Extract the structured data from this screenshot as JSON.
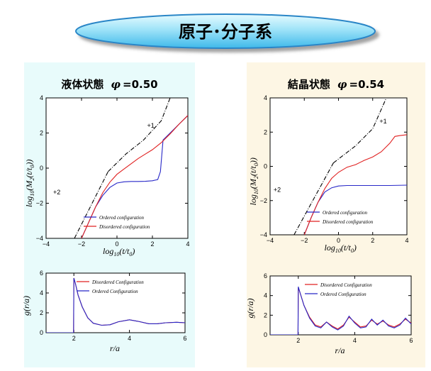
{
  "header": {
    "title": "原子･分子系"
  },
  "panels": [
    {
      "title_prefix": "液体状態",
      "phi_symbol": "φ",
      "phi_value": "=0.50"
    },
    {
      "title_prefix": "結晶状態",
      "phi_symbol": "φ",
      "phi_value": "=0.54"
    }
  ],
  "chart_data": [
    {
      "id": "liquid-msd",
      "type": "line",
      "xlabel": "log10(t/t0)",
      "ylabel": "log10(M2(t/t0))",
      "xlim": [
        -4,
        4
      ],
      "ylim": [
        -4,
        4
      ],
      "xticks": [
        -4,
        -2,
        0,
        2,
        4
      ],
      "yticks": [
        -4,
        -2,
        0,
        2,
        4
      ],
      "annotations": [
        "+1",
        "+2"
      ],
      "series": [
        {
          "name": "Ordered configuration",
          "color": "#2828c8",
          "x": [
            -2,
            -1.6,
            -1.2,
            -0.8,
            -0.4,
            0,
            0.4,
            0.8,
            1.2,
            1.6,
            2.0,
            2.3,
            2.45,
            2.6,
            3.0,
            3.5,
            4.0
          ],
          "y": [
            -4,
            -3.1,
            -2.2,
            -1.55,
            -1.1,
            -0.85,
            -0.78,
            -0.76,
            -0.76,
            -0.75,
            -0.72,
            -0.65,
            -0.2,
            1.6,
            2.0,
            2.5,
            3.0
          ]
        },
        {
          "name": "Disordered configuration",
          "color": "#e02020",
          "x": [
            -2,
            -1.6,
            -1.2,
            -0.8,
            -0.4,
            0,
            0.4,
            0.8,
            1.2,
            1.6,
            2.0,
            2.5,
            3.0,
            3.5,
            4.0
          ],
          "y": [
            -4,
            -3.1,
            -2.2,
            -1.4,
            -0.8,
            -0.35,
            -0.05,
            0.25,
            0.55,
            0.8,
            1.05,
            1.45,
            1.95,
            2.5,
            3.0
          ]
        },
        {
          "name": "+2 slope",
          "color": "#000000",
          "style": "dashdot",
          "x": [
            -2.4,
            -0.5
          ],
          "y": [
            -4,
            -0.2
          ]
        },
        {
          "name": "+1 slope",
          "color": "#000000",
          "style": "dashdot",
          "x": [
            -0.5,
            0.5,
            1.5,
            2.5,
            3.0
          ],
          "y": [
            -0.2,
            0.8,
            1.6,
            2.7,
            4.0
          ]
        }
      ],
      "legend": [
        "Ordered configuration",
        "Disordered configuration"
      ],
      "legend_position": "bottom-right"
    },
    {
      "id": "crystal-msd",
      "type": "line",
      "xlabel": "log10(t/t0)",
      "ylabel": "log10(M2(t/t0))",
      "xlim": [
        -4,
        4
      ],
      "ylim": [
        -4,
        4
      ],
      "xticks": [
        -4,
        -2,
        0,
        2,
        4
      ],
      "yticks": [
        -4,
        -2,
        0,
        2,
        4
      ],
      "annotations": [
        "+1",
        "+2"
      ],
      "series": [
        {
          "name": "Ordered configuration",
          "color": "#2828c8",
          "x": [
            -2,
            -1.6,
            -1.2,
            -0.8,
            -0.4,
            0,
            0.5,
            1,
            2,
            3,
            4
          ],
          "y": [
            -4,
            -3.0,
            -2.1,
            -1.5,
            -1.25,
            -1.15,
            -1.12,
            -1.12,
            -1.12,
            -1.12,
            -1.1
          ]
        },
        {
          "name": "Disordered configuration",
          "color": "#e02020",
          "x": [
            -2,
            -1.6,
            -1.2,
            -0.8,
            -0.4,
            0,
            0.5,
            1.0,
            1.5,
            2.0,
            2.5,
            3.0,
            3.3,
            3.6,
            4.0
          ],
          "y": [
            -4,
            -3.0,
            -2.1,
            -1.3,
            -0.7,
            -0.35,
            -0.05,
            0.1,
            0.35,
            0.55,
            0.85,
            1.35,
            1.75,
            1.8,
            1.85
          ]
        },
        {
          "name": "+2 slope",
          "color": "#000000",
          "style": "dashdot",
          "x": [
            -2.6,
            -0.3
          ],
          "y": [
            -4,
            0.2
          ]
        },
        {
          "name": "+1 slope",
          "color": "#000000",
          "style": "dashdot",
          "x": [
            -0.3,
            1.0,
            2.0,
            2.8
          ],
          "y": [
            0.2,
            1.2,
            2.2,
            4.0
          ]
        }
      ],
      "legend": [
        "Ordered configuration",
        "Disordered configuration"
      ],
      "legend_position": "bottom-right"
    },
    {
      "id": "liquid-gr",
      "type": "line",
      "xlabel": "r/a",
      "ylabel": "g(r/a)",
      "xlim": [
        1,
        6
      ],
      "ylim": [
        0,
        6
      ],
      "xticks": [
        2,
        4,
        6
      ],
      "yticks": [
        0,
        2,
        4,
        6
      ],
      "series": [
        {
          "name": "Disordered Configuration",
          "color": "#e02020",
          "x": [
            1,
            1.99,
            2.0,
            2.05,
            2.15,
            2.3,
            2.5,
            2.7,
            3.0,
            3.3,
            3.6,
            4.0,
            4.3,
            4.7,
            5.0,
            5.3,
            5.7,
            6.0
          ],
          "y": [
            0,
            0,
            5.5,
            5.0,
            3.8,
            2.6,
            1.5,
            0.95,
            0.75,
            0.8,
            1.1,
            1.3,
            1.15,
            0.9,
            0.9,
            1.0,
            1.05,
            1.0
          ]
        },
        {
          "name": "Ordered Configuration",
          "color": "#2828c8",
          "x": [
            1,
            1.99,
            2.0,
            2.05,
            2.15,
            2.3,
            2.5,
            2.7,
            3.0,
            3.3,
            3.6,
            4.0,
            4.3,
            4.7,
            5.0,
            5.3,
            5.7,
            6.0
          ],
          "y": [
            0,
            0,
            5.5,
            5.0,
            3.8,
            2.6,
            1.5,
            0.95,
            0.75,
            0.8,
            1.1,
            1.3,
            1.15,
            0.9,
            0.9,
            1.0,
            1.05,
            1.0
          ]
        }
      ],
      "legend": [
        "Disordered Configuration",
        "Ordered Configuration"
      ],
      "legend_position": "top-right"
    },
    {
      "id": "crystal-gr",
      "type": "line",
      "xlabel": "r/a",
      "ylabel": "g(r/a)",
      "xlim": [
        1,
        6
      ],
      "ylim": [
        0,
        6
      ],
      "xticks": [
        2,
        4,
        6
      ],
      "yticks": [
        0,
        2,
        4,
        6
      ],
      "series": [
        {
          "name": "Disordered Configuration",
          "color": "#e02020",
          "x": [
            1,
            1.99,
            2.0,
            2.05,
            2.2,
            2.4,
            2.6,
            2.8,
            3.0,
            3.2,
            3.4,
            3.6,
            3.8,
            4.0,
            4.2,
            4.4,
            4.6,
            4.8,
            5.0,
            5.2,
            5.4,
            5.6,
            5.8,
            6.0
          ],
          "y": [
            0,
            0,
            4.8,
            4.4,
            3.0,
            1.8,
            1.0,
            0.8,
            1.3,
            0.9,
            0.6,
            1.0,
            1.8,
            1.3,
            0.8,
            0.9,
            1.5,
            1.1,
            1.4,
            1.0,
            0.8,
            1.1,
            1.6,
            1.2
          ]
        },
        {
          "name": "Ordered Configuration",
          "color": "#2828c8",
          "x": [
            1,
            1.99,
            2.0,
            2.05,
            2.2,
            2.4,
            2.6,
            2.8,
            3.0,
            3.2,
            3.4,
            3.6,
            3.8,
            4.0,
            4.2,
            4.4,
            4.6,
            4.8,
            5.0,
            5.2,
            5.4,
            5.6,
            5.8,
            6.0
          ],
          "y": [
            0,
            0,
            4.9,
            4.4,
            3.0,
            1.7,
            0.9,
            0.7,
            1.3,
            0.8,
            0.5,
            0.9,
            1.9,
            1.2,
            0.7,
            0.8,
            1.6,
            1.0,
            1.5,
            0.9,
            0.7,
            1.0,
            1.7,
            1.1
          ]
        }
      ],
      "legend": [
        "Disordered Configuration",
        "Ordered Configuration"
      ],
      "legend_position": "top-right"
    }
  ]
}
